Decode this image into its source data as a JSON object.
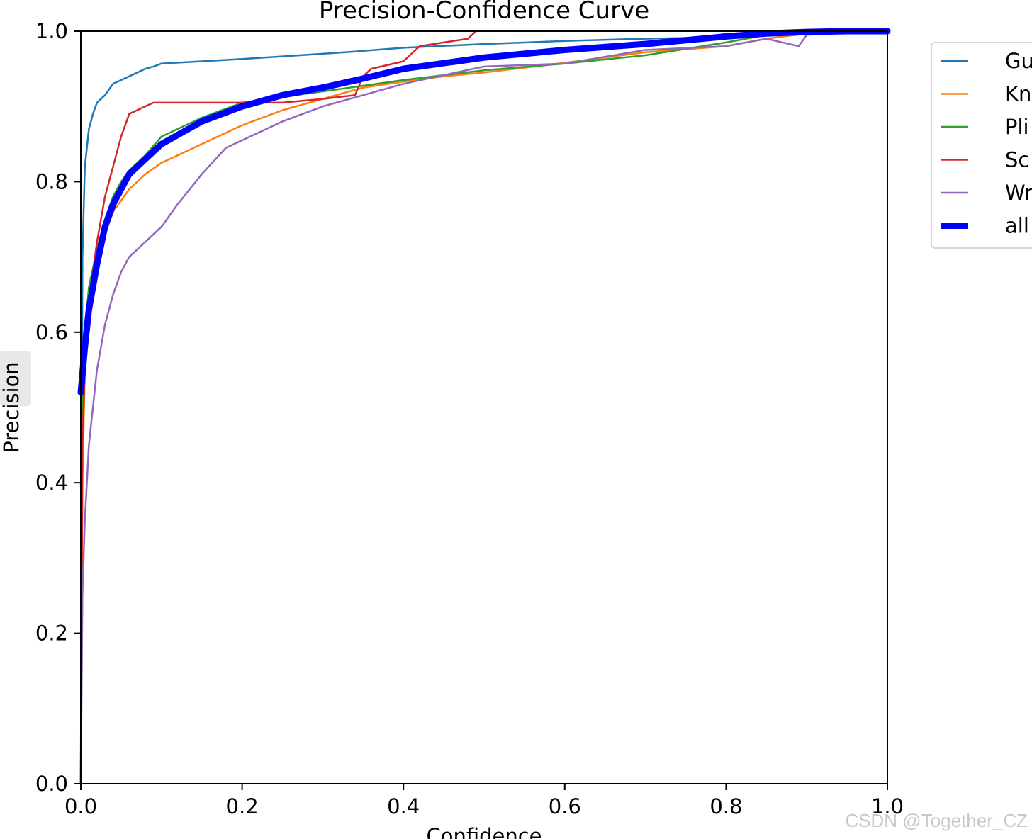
{
  "chart_data": {
    "type": "line",
    "title": "Precision-Confidence Curve",
    "xlabel": "Confidence",
    "ylabel": "Precision",
    "xlim": [
      0,
      1
    ],
    "ylim": [
      0,
      1
    ],
    "xticks": [
      "0.0",
      "0.2",
      "0.4",
      "0.6",
      "0.8",
      "1.0"
    ],
    "yticks": [
      "0.0",
      "0.2",
      "0.4",
      "0.6",
      "0.8",
      "1.0"
    ],
    "grid": false,
    "legend_position": "outside-right-top",
    "series": [
      {
        "name": "Gu",
        "color": "#1f77b4",
        "x": [
          0.0,
          0.002,
          0.005,
          0.01,
          0.015,
          0.02,
          0.03,
          0.04,
          0.05,
          0.06,
          0.08,
          0.09,
          0.1,
          0.15,
          0.2,
          0.3,
          0.34,
          0.4,
          0.5,
          0.6,
          0.7,
          0.8,
          0.85,
          0.9,
          0.95,
          1.0
        ],
        "y": [
          0.0,
          0.7,
          0.82,
          0.87,
          0.89,
          0.905,
          0.915,
          0.93,
          0.935,
          0.94,
          0.95,
          0.953,
          0.957,
          0.96,
          0.963,
          0.97,
          0.973,
          0.978,
          0.983,
          0.987,
          0.99,
          0.992,
          0.995,
          0.997,
          0.999,
          1.0
        ]
      },
      {
        "name": "Kn",
        "color": "#ff7f0e",
        "x": [
          0.0,
          0.002,
          0.005,
          0.01,
          0.02,
          0.03,
          0.04,
          0.06,
          0.08,
          0.1,
          0.15,
          0.2,
          0.25,
          0.3,
          0.35,
          0.4,
          0.45,
          0.5,
          0.6,
          0.7,
          0.8,
          0.85,
          0.9,
          0.95,
          1.0
        ],
        "y": [
          0.0,
          0.4,
          0.55,
          0.62,
          0.68,
          0.73,
          0.76,
          0.79,
          0.81,
          0.825,
          0.85,
          0.875,
          0.895,
          0.91,
          0.925,
          0.933,
          0.94,
          0.945,
          0.958,
          0.972,
          0.98,
          0.99,
          0.997,
          0.999,
          1.0
        ]
      },
      {
        "name": "Pli",
        "color": "#2ca02c",
        "x": [
          0.0,
          0.002,
          0.005,
          0.01,
          0.02,
          0.03,
          0.04,
          0.05,
          0.06,
          0.08,
          0.1,
          0.15,
          0.2,
          0.3,
          0.4,
          0.5,
          0.6,
          0.7,
          0.8,
          0.85,
          0.9,
          0.95,
          1.0
        ],
        "y": [
          0.0,
          0.5,
          0.6,
          0.66,
          0.71,
          0.75,
          0.78,
          0.8,
          0.815,
          0.835,
          0.86,
          0.885,
          0.905,
          0.92,
          0.935,
          0.948,
          0.957,
          0.968,
          0.985,
          0.995,
          0.998,
          0.999,
          1.0
        ]
      },
      {
        "name": "Sc",
        "color": "#d62728",
        "x": [
          0.0,
          0.002,
          0.005,
          0.01,
          0.015,
          0.02,
          0.03,
          0.04,
          0.05,
          0.06,
          0.09,
          0.15,
          0.2,
          0.25,
          0.3,
          0.34,
          0.35,
          0.36,
          0.4,
          0.42,
          0.45,
          0.48,
          0.49
        ],
        "y": [
          0.0,
          0.45,
          0.55,
          0.62,
          0.68,
          0.72,
          0.78,
          0.82,
          0.86,
          0.89,
          0.905,
          0.905,
          0.905,
          0.905,
          0.91,
          0.915,
          0.94,
          0.95,
          0.96,
          0.98,
          0.985,
          0.99,
          1.0
        ]
      },
      {
        "name": "Wr",
        "color": "#9467bd",
        "x": [
          0.0,
          0.002,
          0.005,
          0.01,
          0.02,
          0.03,
          0.04,
          0.05,
          0.06,
          0.08,
          0.1,
          0.12,
          0.15,
          0.18,
          0.2,
          0.25,
          0.3,
          0.35,
          0.4,
          0.5,
          0.6,
          0.7,
          0.8,
          0.85,
          0.89,
          0.9,
          0.95,
          1.0
        ],
        "y": [
          0.0,
          0.25,
          0.35,
          0.45,
          0.55,
          0.61,
          0.65,
          0.68,
          0.7,
          0.72,
          0.74,
          0.77,
          0.81,
          0.845,
          0.855,
          0.88,
          0.9,
          0.915,
          0.93,
          0.953,
          0.957,
          0.975,
          0.98,
          0.99,
          0.98,
          0.995,
          0.999,
          1.0
        ]
      },
      {
        "name": "all",
        "color": "#0000ff",
        "thick": true,
        "x": [
          0.0,
          0.005,
          0.01,
          0.02,
          0.03,
          0.04,
          0.05,
          0.06,
          0.08,
          0.1,
          0.15,
          0.2,
          0.25,
          0.3,
          0.35,
          0.4,
          0.5,
          0.6,
          0.7,
          0.8,
          0.85,
          0.9,
          0.95,
          1.0
        ],
        "y": [
          0.52,
          0.58,
          0.63,
          0.69,
          0.74,
          0.77,
          0.79,
          0.81,
          0.83,
          0.85,
          0.88,
          0.9,
          0.915,
          0.925,
          0.937,
          0.95,
          0.965,
          0.975,
          0.983,
          0.993,
          0.997,
          0.999,
          1.0,
          1.0
        ]
      }
    ]
  },
  "watermark": "CSDN @Together_CZ"
}
